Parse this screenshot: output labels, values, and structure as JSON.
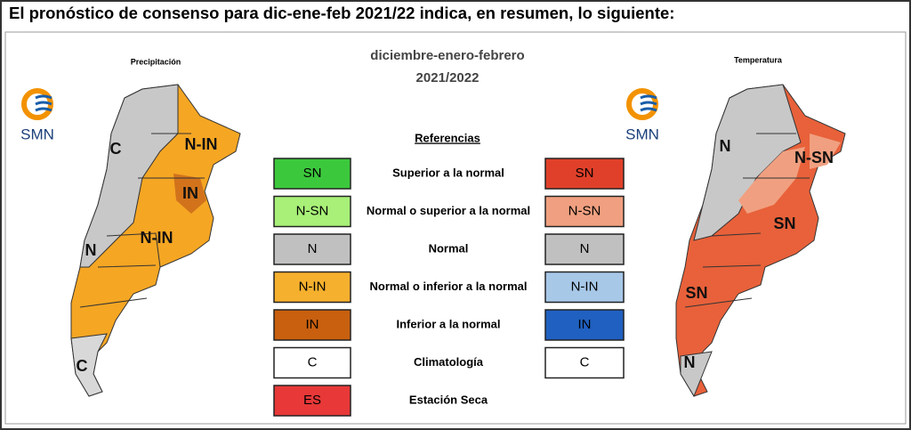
{
  "title": "El pronóstico de consenso para  dic-ene-feb 2021/22 indica, en resumen, lo siguiente:",
  "period": {
    "months": "diciembre-enero-febrero",
    "years": "2021/2022"
  },
  "maps": [
    {
      "title": "Precipitación",
      "logo": "SMN",
      "labels": [
        "C",
        "N-IN",
        "IN",
        "N-IN",
        "N",
        "C"
      ]
    },
    {
      "title": "Temperatura",
      "logo": "SMN",
      "labels": [
        "N",
        "N-SN",
        "SN",
        "SN",
        "N"
      ]
    }
  ],
  "legend": {
    "title": "Referencias",
    "rows": [
      {
        "left": "SN",
        "label": "Superior a la normal",
        "right": "SN"
      },
      {
        "left": "N-SN",
        "label": "Normal o superior a la normal",
        "right": "N-SN"
      },
      {
        "left": "N",
        "label": "Normal",
        "right": "N"
      },
      {
        "left": "N-IN",
        "label": "Normal o inferior a la normal",
        "right": "N-IN"
      },
      {
        "left": "IN",
        "label": "Inferior a la normal",
        "right": "IN"
      },
      {
        "left": "C",
        "label": "Climatología",
        "right": "C"
      },
      {
        "left": "ES",
        "label": "Estación Seca"
      }
    ]
  }
}
